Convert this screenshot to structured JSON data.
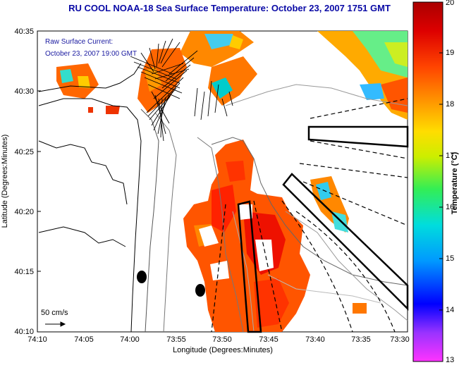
{
  "title": "RU COOL  NOAA-18  Sea Surface Temperature:  October 23, 2007 1751 GMT",
  "annotation": {
    "line1": "Raw Surface Current:",
    "line2": "October 23, 2007 19:00 GMT"
  },
  "scale_label": "50 cm/s",
  "axes": {
    "xlabel": "Longitude (Degrees:Minutes)",
    "ylabel": "Latitude (Degrees:Minutes)",
    "xticks": [
      "74:10",
      "74:05",
      "74:00",
      "73:55",
      "73:50",
      "73:45",
      "73:40",
      "73:35",
      "73:30"
    ],
    "yticks": [
      "40:35",
      "40:30",
      "40:25",
      "40:20",
      "40:15",
      "40:10"
    ]
  },
  "colorbar": {
    "label": "Temperature (°C)",
    "ticks": [
      "20",
      "19",
      "18",
      "17",
      "16",
      "15",
      "14",
      "13"
    ],
    "min": 13,
    "max": 20,
    "colors": [
      "#ff33ff",
      "#9933ff",
      "#0000ff",
      "#0099ff",
      "#00dddd",
      "#33ee55",
      "#ccee00",
      "#ffdd00",
      "#ff9900",
      "#ff4400",
      "#dd0000",
      "#aa0000"
    ]
  },
  "map": {
    "lon_range": [
      "74:10",
      "73:30"
    ],
    "lat_range": [
      "40:10",
      "40:35"
    ]
  }
}
